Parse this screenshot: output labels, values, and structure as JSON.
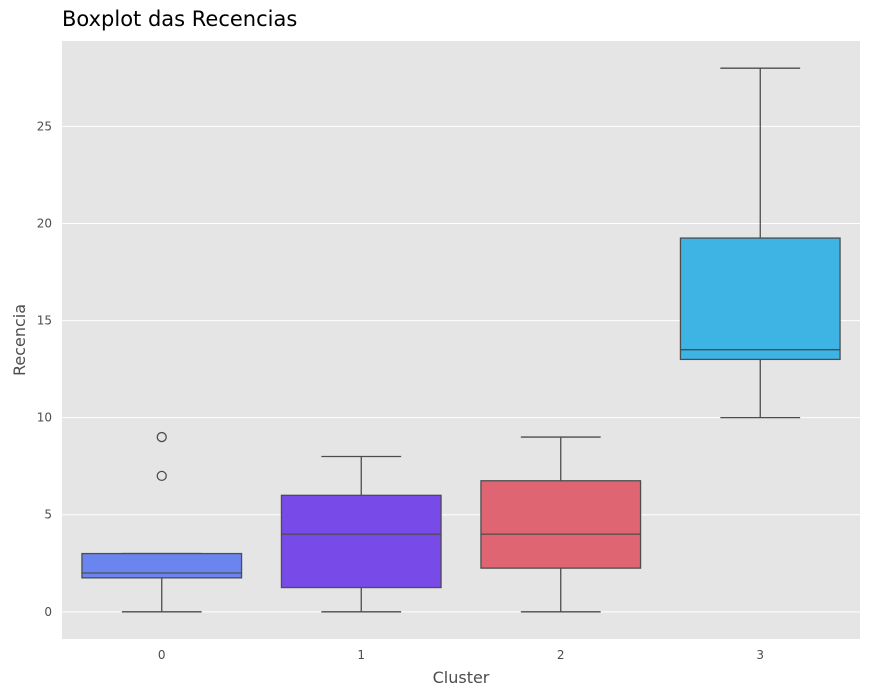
{
  "chart_data": {
    "type": "boxplot",
    "title": "Boxplot das Recencias",
    "xlabel": "Cluster",
    "ylabel": "Recencia",
    "categories": [
      "0",
      "1",
      "2",
      "3"
    ],
    "ylim": [
      -1.4,
      29.4
    ],
    "yticks": [
      0,
      5,
      10,
      15,
      20,
      25
    ],
    "grid": true,
    "colors": {
      "background": "#e5e5e5",
      "grid": "#ffffff",
      "line": "#4d4d4d"
    },
    "boxes": [
      {
        "category": "0",
        "color": "#6a85f0",
        "whisker_low": 0,
        "q1": 1.75,
        "median": 2,
        "q3": 3,
        "whisker_high": 3,
        "outliers": [
          7,
          9
        ]
      },
      {
        "category": "1",
        "color": "#784ae8",
        "whisker_low": 0,
        "q1": 1.25,
        "median": 4,
        "q3": 6,
        "whisker_high": 8,
        "outliers": []
      },
      {
        "category": "2",
        "color": "#e06572",
        "whisker_low": 0,
        "q1": 2.25,
        "median": 4,
        "q3": 6.75,
        "whisker_high": 9,
        "outliers": []
      },
      {
        "category": "3",
        "color": "#3db4e3",
        "whisker_low": 10,
        "q1": 13,
        "median": 13.5,
        "q3": 19.25,
        "whisker_high": 28,
        "outliers": []
      }
    ]
  }
}
